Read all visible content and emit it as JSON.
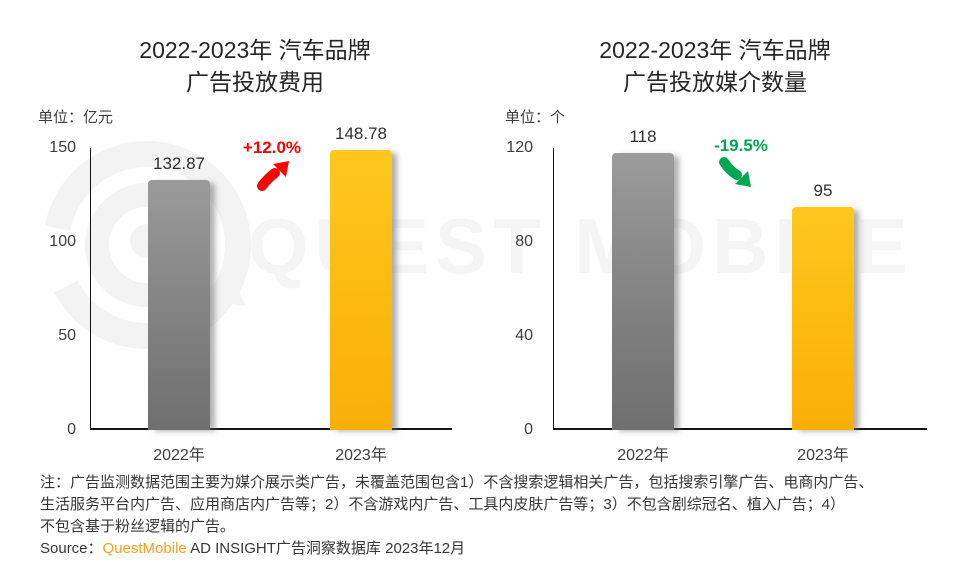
{
  "watermark": {
    "brand_text": "QUEST MOBILE"
  },
  "chart_data": [
    {
      "type": "bar",
      "title": "2022-2023年 汽车品牌 广告投放费用",
      "title_lines": [
        "2022-2023年 汽车品牌",
        "广告投放费用"
      ],
      "unit": "单位：亿元",
      "categories": [
        "2022年",
        "2023年"
      ],
      "values": [
        132.87,
        148.78
      ],
      "value_labels": [
        "132.87",
        "148.78"
      ],
      "bar_colors": [
        "#8c8c8c",
        "#fcb712"
      ],
      "ylim": [
        0,
        150
      ],
      "yticks": [
        0,
        50,
        100,
        150
      ],
      "ytick_labels_top_down": [
        "150",
        "100",
        "50",
        "0"
      ],
      "grid": false,
      "legend": "none",
      "change": {
        "label": "+12.0%",
        "direction": "up-right",
        "color": "#ff0000"
      }
    },
    {
      "type": "bar",
      "title": "2022-2023年 汽车品牌 广告投放媒介数量",
      "title_lines": [
        "2022-2023年 汽车品牌",
        "广告投放媒介数量"
      ],
      "unit": "单位：个",
      "categories": [
        "2022年",
        "2023年"
      ],
      "values": [
        118,
        95
      ],
      "value_labels": [
        "118",
        "95"
      ],
      "bar_colors": [
        "#8c8c8c",
        "#fcb712"
      ],
      "ylim": [
        0,
        120
      ],
      "yticks": [
        0,
        40,
        80,
        120
      ],
      "ytick_labels_top_down": [
        "120",
        "80",
        "40",
        "0"
      ],
      "grid": false,
      "legend": "none",
      "change": {
        "label": "-19.5%",
        "direction": "down-right",
        "color": "#00a651"
      }
    }
  ],
  "footer": {
    "note_lines": [
      "注：广告监测数据范围主要为媒介展示类广告，未覆盖范围包含1）不含搜索逻辑相关广告，包括搜索引擎广告、电商内广告、",
      "生活服务平台内广告、应用商店内广告等；2）不含游戏内广告、工具内皮肤广告等；3）不包含剧综冠名、植入广告；4）",
      "不包含基于粉丝逻辑的广告。"
    ],
    "source_prefix": "Source：",
    "source_brand": "QuestMobile",
    "source_suffix": " AD INSIGHT广告洞察数据库 2023年12月",
    "brand_color": "#f9a01b",
    "accent_red": "#ff0000",
    "accent_green": "#00a651",
    "bar_gray": "#8c8c8c",
    "bar_gold": "#fcb712"
  }
}
